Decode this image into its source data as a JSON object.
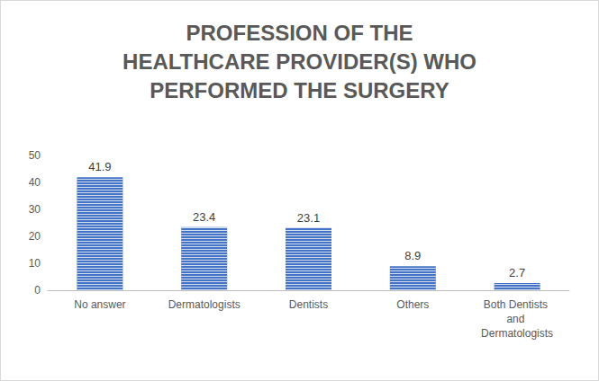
{
  "chart_data": {
    "type": "bar",
    "title": "PROFESSION OF THE HEALTHCARE PROVIDER(S) WHO PERFORMED THE SURGERY",
    "categories": [
      "No answer",
      "Dermatologists",
      "Dentists",
      "Others",
      "Both Dentists and Dermatologists"
    ],
    "values": [
      41.9,
      23.4,
      23.1,
      8.9,
      2.7
    ],
    "color": "#4472c4",
    "ylim": [
      0,
      50
    ],
    "yticks": [
      0,
      10,
      20,
      30,
      40,
      50
    ],
    "grid": false,
    "data_labels": true
  }
}
